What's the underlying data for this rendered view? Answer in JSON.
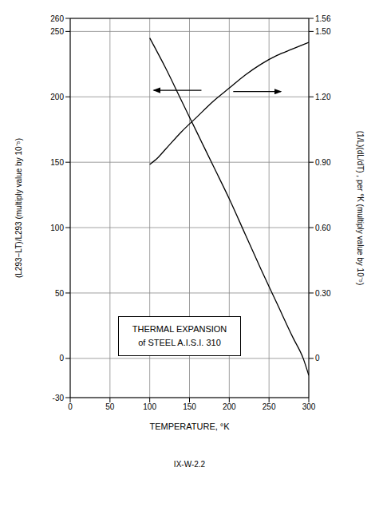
{
  "chart_data": {
    "type": "line",
    "title": "THERMAL EXPANSION",
    "subtitle": "of STEEL A.I.S.I. 310",
    "annotations": [
      "IX-W-2.2"
    ],
    "xlabel": "TEMPERATURE, °K",
    "ylabel": "(L293−LT)/L293   (multiply value by 10⁻⁵)",
    "y2label": "(1/L)(dL/dT) , per °K   (multiply value by 10⁻⁵)",
    "xlim": [
      0,
      300
    ],
    "xticks": [
      0,
      50,
      100,
      150,
      200,
      250,
      300
    ],
    "ylim": [
      -30,
      260
    ],
    "yticks": [
      -30,
      0,
      50,
      100,
      150,
      200,
      250,
      260
    ],
    "y2lim": [
      -0.18,
      1.56
    ],
    "y2ticks": [
      0,
      {
        "value": 0.3,
        "label": "0.30"
      },
      {
        "value": 0.6,
        "label": "0.60"
      },
      {
        "value": 0.9,
        "label": "0.90"
      },
      {
        "value": 1.2,
        "label": "1.20"
      },
      {
        "value": 1.5,
        "label": "1.50"
      },
      1.56
    ],
    "grid": true,
    "series": [
      {
        "color": "#000000",
        "x": [
          100,
          120,
          140,
          160,
          180,
          200,
          220,
          240,
          260,
          280,
          293,
          300
        ],
        "values": [
          245,
          222,
          197,
          172,
          147,
          122,
          95,
          68,
          42,
          16,
          0,
          -13
        ]
      },
      {
        "color": "#000000",
        "axis": "y2",
        "x": [
          100,
          110,
          120,
          140,
          160,
          180,
          200,
          220,
          240,
          260,
          280,
          300
        ],
        "values": [
          0.89,
          0.92,
          0.96,
          1.04,
          1.11,
          1.18,
          1.24,
          1.3,
          1.35,
          1.39,
          1.42,
          1.45
        ]
      }
    ]
  }
}
